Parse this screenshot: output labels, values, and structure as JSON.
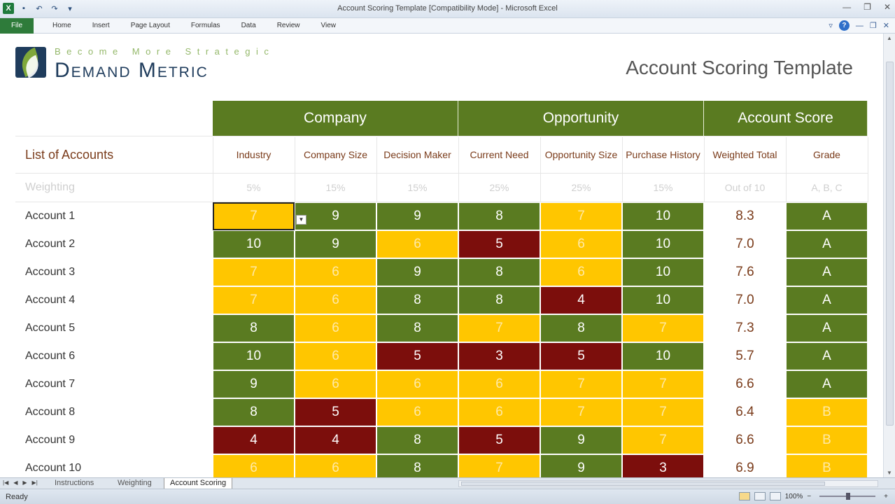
{
  "window": {
    "title": "Account Scoring Template  [Compatibility Mode]  -  Microsoft Excel"
  },
  "ribbon": {
    "tabs": [
      "File",
      "Home",
      "Insert",
      "Page Layout",
      "Formulas",
      "Data",
      "Review",
      "View"
    ]
  },
  "logo": {
    "tagline": "Become More Strategic",
    "brand": "Demand Metric"
  },
  "doc_title": "Account Scoring Template",
  "groups": [
    "Company",
    "Opportunity",
    "Account Score"
  ],
  "list_header": "List of Accounts",
  "columns": [
    "Industry",
    "Company Size",
    "Decision Maker",
    "Current Need",
    "Opportunity Size",
    "Purchase History",
    "Weighted Total",
    "Grade"
  ],
  "weighting_label": "Weighting",
  "weights": [
    "5%",
    "15%",
    "15%",
    "25%",
    "25%",
    "15%",
    "Out of 10",
    "A, B, C"
  ],
  "colors": {
    "green": "#5a7b21",
    "yellow": "#ffc600",
    "red": "#7c0e0c",
    "header_green": "#5a7b21",
    "label_brown": "#7a3b1a"
  },
  "accounts": [
    {
      "name": "Account 1",
      "scores": [
        7,
        9,
        9,
        8,
        7,
        10
      ],
      "total": "8.3",
      "grade": "A"
    },
    {
      "name": "Account 2",
      "scores": [
        10,
        9,
        6,
        5,
        6,
        10
      ],
      "total": "7.0",
      "grade": "A"
    },
    {
      "name": "Account 3",
      "scores": [
        7,
        6,
        9,
        8,
        6,
        10
      ],
      "total": "7.6",
      "grade": "A"
    },
    {
      "name": "Account 4",
      "scores": [
        7,
        6,
        8,
        8,
        4,
        10
      ],
      "total": "7.0",
      "grade": "A"
    },
    {
      "name": "Account 5",
      "scores": [
        8,
        6,
        8,
        7,
        8,
        7
      ],
      "total": "7.3",
      "grade": "A"
    },
    {
      "name": "Account 6",
      "scores": [
        10,
        6,
        5,
        3,
        5,
        10
      ],
      "total": "5.7",
      "grade": "A"
    },
    {
      "name": "Account 7",
      "scores": [
        9,
        6,
        6,
        6,
        7,
        7
      ],
      "total": "6.6",
      "grade": "A"
    },
    {
      "name": "Account 8",
      "scores": [
        8,
        5,
        6,
        6,
        7,
        7
      ],
      "total": "6.4",
      "grade": "B"
    },
    {
      "name": "Account 9",
      "scores": [
        4,
        4,
        8,
        5,
        9,
        7
      ],
      "total": "6.6",
      "grade": "B"
    },
    {
      "name": "Account 10",
      "scores": [
        6,
        6,
        8,
        7,
        9,
        3
      ],
      "total": "6.9",
      "grade": "B"
    }
  ],
  "sheet_tabs": [
    "Instructions",
    "Weighting",
    "Account Scoring"
  ],
  "active_sheet": "Account Scoring",
  "status": {
    "text": "Ready",
    "zoom": "100%"
  }
}
